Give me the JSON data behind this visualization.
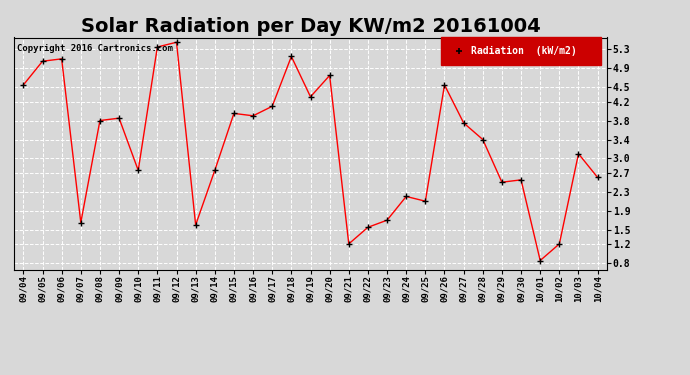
{
  "title": "Solar Radiation per Day KW/m2 20161004",
  "copyright": "Copyright 2016 Cartronics.com",
  "legend_label": "Radiation  (kW/m2)",
  "dates": [
    "09/04",
    "09/05",
    "09/06",
    "09/07",
    "09/08",
    "09/09",
    "09/10",
    "09/11",
    "09/12",
    "09/13",
    "09/14",
    "09/15",
    "09/16",
    "09/17",
    "09/18",
    "09/19",
    "09/20",
    "09/21",
    "09/22",
    "09/23",
    "09/24",
    "09/25",
    "09/26",
    "09/27",
    "09/28",
    "09/29",
    "09/30",
    "10/01",
    "10/02",
    "10/03",
    "10/04"
  ],
  "values": [
    4.55,
    5.05,
    5.1,
    1.65,
    3.8,
    3.85,
    2.75,
    5.35,
    5.45,
    1.6,
    2.75,
    3.95,
    3.9,
    4.1,
    5.15,
    4.3,
    4.75,
    1.2,
    1.55,
    1.7,
    2.2,
    2.1,
    4.55,
    3.75,
    3.4,
    2.5,
    2.55,
    0.85,
    1.2,
    3.1,
    2.6
  ],
  "line_color": "#ff0000",
  "marker_color": "#000000",
  "bg_color": "#d8d8d8",
  "plot_bg": "#d8d8d8",
  "ylim": [
    0.65,
    5.55
  ],
  "yticks": [
    0.8,
    1.2,
    1.5,
    1.9,
    2.3,
    2.7,
    3.0,
    3.4,
    3.8,
    4.2,
    4.5,
    4.9,
    5.3
  ],
  "grid_color": "#ffffff",
  "title_fontsize": 14,
  "legend_bg": "#cc0000",
  "legend_text_color": "#ffffff"
}
